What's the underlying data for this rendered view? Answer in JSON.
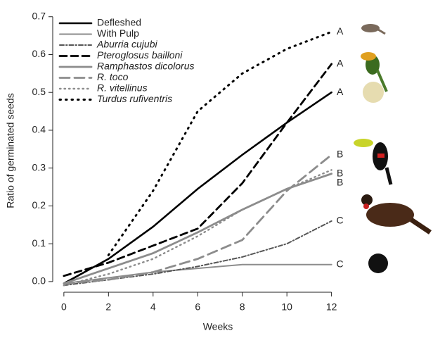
{
  "chart_data": {
    "type": "line",
    "x_label": "Weeks",
    "y_label": "Ratio of germinated seeds",
    "x": [
      0,
      2,
      4,
      6,
      8,
      10,
      12
    ],
    "xlim": [
      -0.5,
      12.8
    ],
    "xticks": [
      0,
      2,
      4,
      6,
      8,
      10,
      12
    ],
    "ylim": [
      -0.03,
      0.72
    ],
    "yticks": [
      {
        "value": 0,
        "label": "0.0"
      },
      0.1,
      0.2,
      0.3,
      0.4,
      0.5,
      0.6,
      0.7
    ],
    "series": [
      {
        "name": "Defleshed",
        "color": "#000000",
        "style": "solid-bold",
        "italic": false,
        "group": "A",
        "values": [
          -0.005,
          0.06,
          0.145,
          0.245,
          0.335,
          0.42,
          0.5
        ]
      },
      {
        "name": "With Pulp",
        "color": "#8c8c8c",
        "style": "solid-dotted",
        "italic": false,
        "group": "C",
        "values": [
          -0.005,
          0.01,
          0.025,
          0.035,
          0.045,
          0.045,
          0.045
        ]
      },
      {
        "name": "Aburria cujubi",
        "color": "#555555",
        "style": "dotdash",
        "italic": true,
        "group": "C",
        "values": [
          -0.01,
          0.005,
          0.02,
          0.04,
          0.065,
          0.1,
          0.16
        ]
      },
      {
        "name": "Pteroglosus bailloni",
        "color": "#000000",
        "style": "dashed",
        "italic": true,
        "group": "A",
        "values": [
          0.015,
          0.05,
          0.095,
          0.14,
          0.26,
          0.42,
          0.575
        ]
      },
      {
        "name": "Ramphastos dicolorus",
        "color": "#8c8c8c",
        "style": "solid",
        "italic": true,
        "group": "B",
        "values": [
          -0.005,
          0.035,
          0.075,
          0.13,
          0.19,
          0.245,
          0.285
        ]
      },
      {
        "name": "R. toco",
        "color": "#8c8c8c",
        "style": "longdash",
        "italic": true,
        "group": "B",
        "values": [
          -0.005,
          0.005,
          0.025,
          0.06,
          0.11,
          0.24,
          0.335
        ]
      },
      {
        "name": "R. vitellinus",
        "color": "#8c8c8c",
        "style": "dotted",
        "italic": true,
        "group": "B",
        "values": [
          -0.01,
          0.02,
          0.06,
          0.12,
          0.19,
          0.245,
          0.295
        ]
      },
      {
        "name": "Turdus rufiventris",
        "color": "#000000",
        "style": "dotted-sparse",
        "italic": true,
        "group": "A",
        "values": [
          null,
          0.07,
          0.24,
          0.45,
          0.55,
          0.615,
          0.66
        ]
      }
    ]
  }
}
